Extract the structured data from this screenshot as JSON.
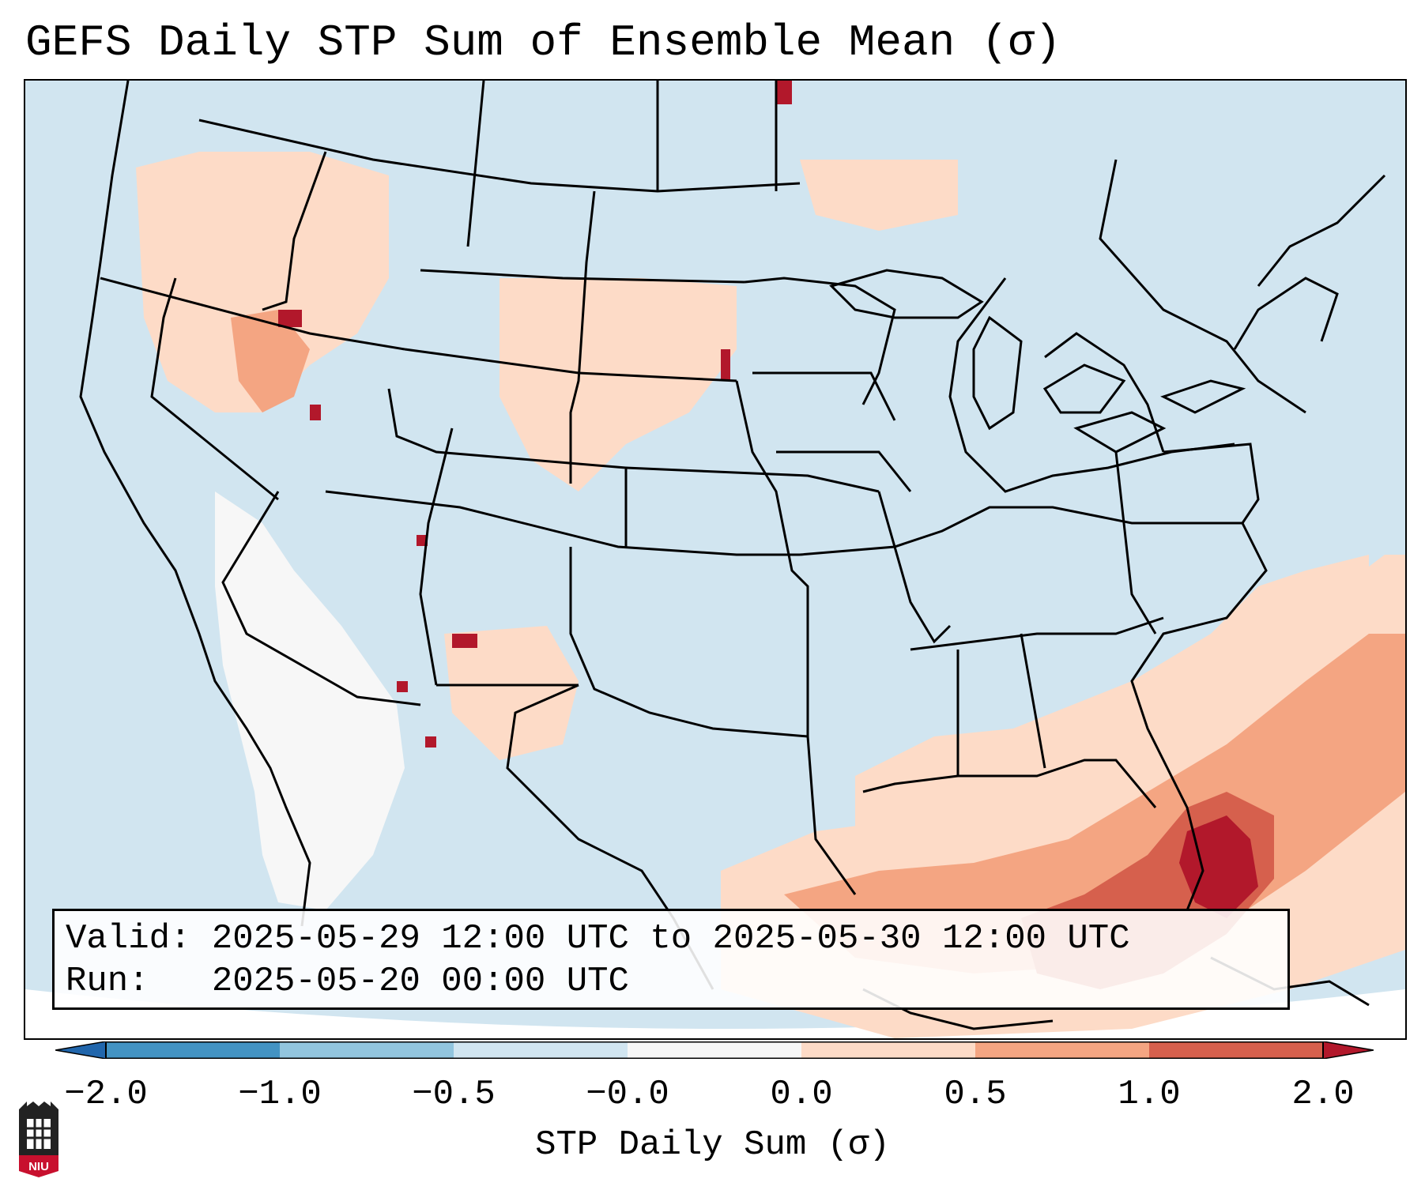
{
  "title": "GEFS Daily STP Sum of Ensemble Mean (σ)",
  "info": {
    "valid_line": "Valid: 2025-05-29 12:00 UTC to 2025-05-30 12:00 UTC",
    "run_line": "Run:   2025-05-20 00:00 UTC"
  },
  "colorbar": {
    "label": "STP Daily Sum (σ)",
    "ticks": [
      "−2.0",
      "−1.0",
      "−0.5",
      "−0.0",
      "0.0",
      "0.5",
      "1.0",
      "2.0"
    ],
    "bins": [
      {
        "range": "< -2.0",
        "color": "#2166ac"
      },
      {
        "range": "-2.0 to -1.0",
        "color": "#4393c3"
      },
      {
        "range": "-1.0 to -0.5",
        "color": "#92c5de"
      },
      {
        "range": "-0.5 to -0.0",
        "color": "#d1e5f0"
      },
      {
        "range": "-0.0 to 0.0",
        "color": "#f7f7f7"
      },
      {
        "range": "0.0 to 0.5",
        "color": "#fddbc7"
      },
      {
        "range": "0.5 to 1.0",
        "color": "#f4a582"
      },
      {
        "range": "1.0 to 2.0",
        "color": "#d6604d"
      },
      {
        "range": "> 2.0",
        "color": "#b2182b"
      }
    ]
  },
  "map": {
    "region": "Continental United States",
    "background_color": "#d1e5f0",
    "highlight_areas": [
      {
        "area": "Florida and western Atlantic",
        "category": "1.0 to > 2.0"
      },
      {
        "area": "Gulf of Mexico coast",
        "category": "0.0 to 1.0"
      },
      {
        "area": "Southwest US / northern Mexico",
        "category": "-0.0 to 0.0"
      },
      {
        "area": "Northern Plains and Pacific Northwest",
        "category": "0.0 to 1.0"
      }
    ]
  },
  "logo": {
    "text": "NIU"
  }
}
